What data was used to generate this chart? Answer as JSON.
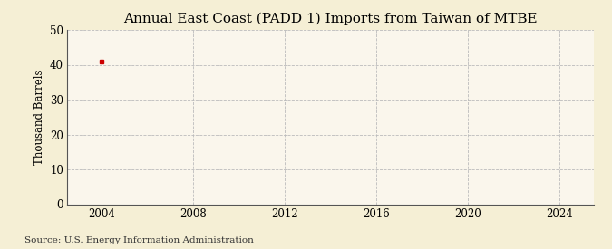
{
  "title": "Annual East Coast (PADD 1) Imports from Taiwan of MTBE",
  "ylabel": "Thousand Barrels",
  "source": "Source: U.S. Energy Information Administration",
  "background_color": "#f5efd5",
  "plot_bg_color": "#faf6ec",
  "data_x": [
    2004
  ],
  "data_y": [
    41
  ],
  "data_color": "#cc0000",
  "xlim": [
    2002.5,
    2025.5
  ],
  "ylim": [
    0,
    50
  ],
  "xticks": [
    2004,
    2008,
    2012,
    2016,
    2020,
    2024
  ],
  "yticks": [
    0,
    10,
    20,
    30,
    40,
    50
  ],
  "grid_color": "#bbbbbb",
  "title_fontsize": 11,
  "label_fontsize": 8.5,
  "tick_fontsize": 8.5,
  "source_fontsize": 7.5
}
